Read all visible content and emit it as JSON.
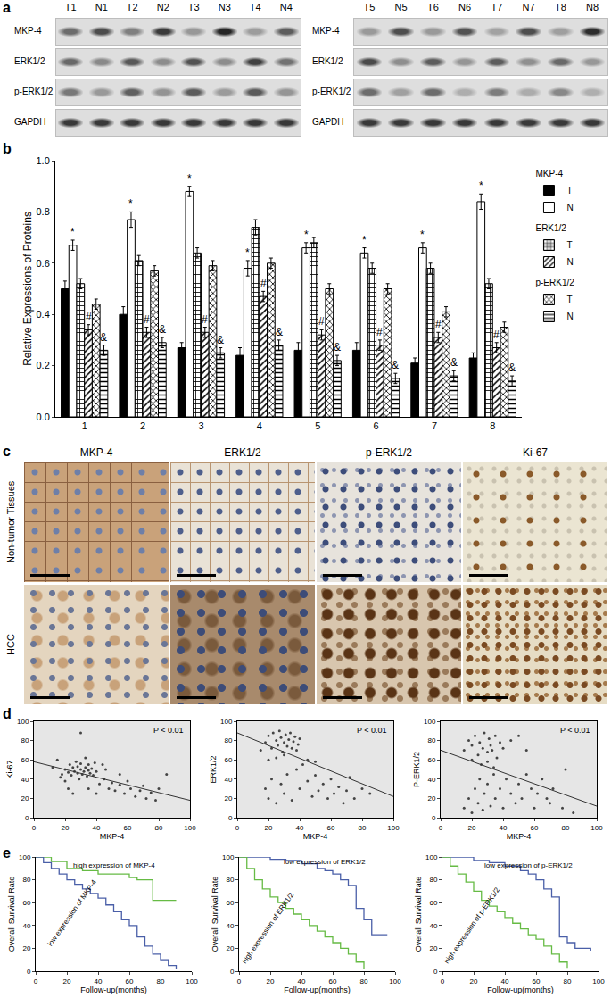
{
  "panel_labels": [
    "a",
    "b",
    "c",
    "d",
    "e"
  ],
  "blot": {
    "rows": [
      "MKP-4",
      "ERK1/2",
      "p-ERK1/2",
      "GAPDH"
    ],
    "blocks": [
      {
        "lanes": [
          "T1",
          "N1",
          "T2",
          "N2",
          "T3",
          "N3",
          "T4",
          "N4"
        ]
      },
      {
        "lanes": [
          "T5",
          "N5",
          "T6",
          "N6",
          "T7",
          "N7",
          "T8",
          "N8"
        ]
      }
    ]
  },
  "ihc": {
    "columns": [
      "MKP-4",
      "ERK1/2",
      "p-ERK1/2",
      "Ki-67"
    ],
    "rows": [
      "Non-tumor Tissues",
      "HCC"
    ]
  },
  "chart_data": [
    {
      "type": "bar",
      "categories": [
        "1",
        "2",
        "3",
        "4",
        "5",
        "6",
        "7",
        "8"
      ],
      "ylabel": "Relative Expressions of Proteins",
      "ylim": [
        0,
        1
      ],
      "yticks": [
        {
          "value": 0,
          "label": "0.0"
        },
        0.2,
        0.4,
        0.6,
        0.8,
        {
          "value": 1,
          "label": "1.0"
        }
      ],
      "grid": false,
      "legend": "right",
      "series": [
        {
          "name": "T",
          "group": "MKP-4",
          "color": "#000000",
          "marker": "solid",
          "values": [
            0.5,
            0.4,
            0.27,
            0.24,
            0.26,
            0.26,
            0.21,
            0.23
          ],
          "errors": [
            0.03,
            0.03,
            0.02,
            0.03,
            0.03,
            0.03,
            0.02,
            0.02
          ]
        },
        {
          "name": "N",
          "group": "MKP-4",
          "color": "#ffffff",
          "marker": "solid",
          "values": [
            0.67,
            0.77,
            0.88,
            0.58,
            0.66,
            0.64,
            0.66,
            0.84
          ],
          "errors": [
            0.02,
            0.03,
            0.02,
            0.03,
            0.02,
            0.02,
            0.02,
            0.03
          ]
        },
        {
          "name": "T",
          "group": "ERK1/2",
          "color": "#ffffff",
          "marker": "+",
          "values": [
            0.52,
            0.61,
            0.64,
            0.74,
            0.68,
            0.58,
            0.58,
            0.52
          ],
          "errors": [
            0.02,
            0.02,
            0.02,
            0.03,
            0.02,
            0.02,
            0.02,
            0.02
          ]
        },
        {
          "name": "N",
          "group": "ERK1/2",
          "color": "#ffffff",
          "marker": "/",
          "values": [
            0.34,
            0.33,
            0.33,
            0.47,
            0.32,
            0.28,
            0.31,
            0.27
          ],
          "errors": [
            0.02,
            0.02,
            0.02,
            0.02,
            0.02,
            0.02,
            0.02,
            0.02
          ]
        },
        {
          "name": "T",
          "group": "p-ERK1/2",
          "color": "#ffffff",
          "marker": "x",
          "values": [
            0.44,
            0.57,
            0.59,
            0.6,
            0.5,
            0.5,
            0.41,
            0.35
          ],
          "errors": [
            0.02,
            0.02,
            0.02,
            0.02,
            0.02,
            0.02,
            0.02,
            0.02
          ]
        },
        {
          "name": "N",
          "group": "p-ERK1/2",
          "color": "#ffffff",
          "marker": "-",
          "values": [
            0.26,
            0.29,
            0.25,
            0.28,
            0.22,
            0.15,
            0.16,
            0.14
          ],
          "errors": [
            0.02,
            0.02,
            0.02,
            0.02,
            0.02,
            0.02,
            0.02,
            0.02
          ]
        }
      ],
      "annotations": [
        {
          "group": "MKP-4",
          "series": "N",
          "text": "*"
        },
        {
          "group": "ERK1/2",
          "series": "N",
          "text": "#"
        },
        {
          "group": "p-ERK1/2",
          "series": "N",
          "text": "&"
        }
      ]
    },
    {
      "type": "scatter",
      "xlabel": "MKP-4",
      "ylabel": "Ki-67",
      "xlim": [
        0,
        100
      ],
      "xticks": [
        0,
        20,
        40,
        60,
        80,
        100
      ],
      "ylim": [
        0,
        100
      ],
      "yticks": [
        0,
        20,
        40,
        60,
        80,
        100
      ],
      "grid": false,
      "color": "#444444",
      "annotations": [
        "P < 0.01"
      ],
      "x": [
        18,
        20,
        22,
        23,
        24,
        25,
        26,
        27,
        28,
        28,
        29,
        30,
        30,
        31,
        32,
        33,
        34,
        35,
        35,
        36,
        37,
        38,
        39,
        40,
        20,
        22,
        25,
        30,
        15,
        17,
        42,
        45,
        48,
        50,
        52,
        55,
        58,
        60,
        62,
        65,
        68,
        70,
        72,
        75,
        78,
        80,
        85,
        44,
        46,
        55,
        35,
        33,
        12,
        40
      ],
      "values": [
        45,
        50,
        47,
        55,
        44,
        52,
        48,
        58,
        46,
        53,
        40,
        50,
        56,
        45,
        48,
        52,
        43,
        49,
        55,
        46,
        51,
        44,
        57,
        48,
        38,
        30,
        25,
        88,
        60,
        42,
        35,
        40,
        30,
        36,
        28,
        34,
        25,
        38,
        30,
        22,
        28,
        33,
        20,
        26,
        18,
        30,
        45,
        55,
        50,
        45,
        30,
        62,
        52,
        25
      ],
      "fit": {
        "x": [
          0,
          100
        ],
        "values": [
          58,
          18
        ]
      }
    },
    {
      "type": "scatter",
      "xlabel": "MKP-4",
      "ylabel": "ERK1/2",
      "xlim": [
        0,
        100
      ],
      "xticks": [
        0,
        20,
        40,
        60,
        80,
        100
      ],
      "ylim": [
        0,
        100
      ],
      "yticks": [
        0,
        20,
        40,
        60,
        80,
        100
      ],
      "grid": false,
      "color": "#444444",
      "annotations": [
        "P < 0.01"
      ],
      "x": [
        15,
        18,
        20,
        22,
        23,
        25,
        26,
        27,
        28,
        29,
        30,
        31,
        32,
        33,
        34,
        35,
        36,
        37,
        38,
        39,
        40,
        30,
        25,
        20,
        18,
        20,
        22,
        25,
        28,
        30,
        32,
        35,
        38,
        40,
        45,
        48,
        50,
        52,
        55,
        58,
        60,
        62,
        65,
        68,
        70,
        72,
        75,
        80,
        85,
        42,
        45,
        50
      ],
      "values": [
        70,
        78,
        85,
        72,
        88,
        80,
        75,
        90,
        83,
        68,
        78,
        86,
        74,
        81,
        88,
        72,
        79,
        84,
        70,
        76,
        82,
        65,
        62,
        60,
        30,
        20,
        40,
        15,
        35,
        25,
        45,
        18,
        50,
        30,
        38,
        22,
        44,
        28,
        35,
        20,
        40,
        25,
        32,
        15,
        28,
        42,
        20,
        30,
        25,
        55,
        60,
        58
      ],
      "fit": {
        "x": [
          0,
          100
        ],
        "values": [
          88,
          22
        ]
      }
    },
    {
      "type": "scatter",
      "xlabel": "MKP-4",
      "ylabel": "P-ERK1/2",
      "xlim": [
        0,
        100
      ],
      "xticks": [
        0,
        20,
        40,
        60,
        80,
        100
      ],
      "ylim": [
        0,
        100
      ],
      "yticks": [
        0,
        20,
        40,
        60,
        80,
        100
      ],
      "grid": false,
      "color": "#444444",
      "annotations": [
        "P < 0.01"
      ],
      "x": [
        15,
        18,
        20,
        22,
        24,
        25,
        27,
        28,
        30,
        31,
        32,
        33,
        35,
        36,
        38,
        40,
        26,
        30,
        34,
        20,
        45,
        50,
        55,
        15,
        18,
        20,
        22,
        24,
        25,
        27,
        28,
        30,
        32,
        34,
        35,
        38,
        40,
        42,
        45,
        48,
        50,
        52,
        55,
        58,
        60,
        62,
        65,
        68,
        70,
        72,
        78,
        80,
        85
      ],
      "values": [
        70,
        80,
        75,
        85,
        65,
        78,
        72,
        88,
        68,
        82,
        75,
        70,
        85,
        62,
        78,
        72,
        55,
        58,
        52,
        60,
        80,
        85,
        70,
        10,
        20,
        5,
        30,
        15,
        40,
        8,
        25,
        35,
        12,
        45,
        20,
        30,
        10,
        40,
        25,
        15,
        35,
        20,
        45,
        30,
        10,
        25,
        40,
        20,
        15,
        30,
        10,
        50,
        5
      ],
      "fit": {
        "x": [
          0,
          100
        ],
        "values": [
          70,
          12
        ]
      }
    },
    {
      "type": "line",
      "line_style": "step",
      "xlabel": "Follow-up(months)",
      "ylabel": "Overall Survival Rate",
      "xlim": [
        0,
        100
      ],
      "xticks": [
        0,
        20,
        40,
        60,
        80,
        100
      ],
      "ylim": [
        0,
        100
      ],
      "yticks": [
        0,
        20,
        40,
        60,
        80,
        100
      ],
      "grid": false,
      "series": [
        {
          "name": "high expression of MKP-4",
          "color": "#66bb44",
          "x": [
            0,
            10,
            20,
            30,
            40,
            50,
            60,
            65,
            70,
            75,
            80,
            90
          ],
          "values": [
            100,
            96,
            90,
            88,
            85,
            85,
            82,
            80,
            80,
            62,
            62,
            62
          ]
        },
        {
          "name": "low expression of MKP-4",
          "color": "#4a5fa8",
          "x": [
            0,
            5,
            10,
            15,
            20,
            25,
            30,
            35,
            40,
            45,
            50,
            55,
            60,
            65,
            70,
            75,
            80,
            85,
            90
          ],
          "values": [
            100,
            95,
            90,
            85,
            80,
            76,
            72,
            68,
            64,
            58,
            52,
            45,
            40,
            30,
            22,
            15,
            10,
            5,
            2
          ]
        }
      ]
    },
    {
      "type": "line",
      "line_style": "step",
      "xlabel": "Follow-up(months)",
      "ylabel": "Overall Survival Rate",
      "xlim": [
        0,
        100
      ],
      "xticks": [
        0,
        20,
        40,
        60,
        80,
        100
      ],
      "ylim": [
        0,
        100
      ],
      "yticks": [
        0,
        20,
        40,
        60,
        80,
        100
      ],
      "grid": false,
      "series": [
        {
          "name": "low expression of ERK1/2",
          "color": "#4a5fa8",
          "x": [
            0,
            10,
            20,
            30,
            40,
            50,
            55,
            60,
            65,
            70,
            75,
            80,
            85,
            95
          ],
          "values": [
            100,
            100,
            98,
            97,
            94,
            90,
            88,
            85,
            80,
            75,
            55,
            45,
            32,
            32
          ]
        },
        {
          "name": "high expression of ERK1/2",
          "color": "#66bb44",
          "x": [
            0,
            5,
            10,
            15,
            20,
            25,
            30,
            35,
            40,
            45,
            50,
            55,
            60,
            65,
            70,
            75,
            80
          ],
          "values": [
            100,
            90,
            80,
            72,
            65,
            60,
            55,
            50,
            45,
            40,
            35,
            30,
            25,
            20,
            15,
            8,
            2
          ]
        }
      ]
    },
    {
      "type": "line",
      "line_style": "step",
      "xlabel": "Follow-up(months)",
      "ylabel": "Overall Survival Rate",
      "xlim": [
        0,
        100
      ],
      "xticks": [
        0,
        20,
        40,
        60,
        80,
        100
      ],
      "ylim": [
        0,
        100
      ],
      "yticks": [
        0,
        20,
        40,
        60,
        80,
        100
      ],
      "grid": false,
      "series": [
        {
          "name": "low expression of p-ERK1/2",
          "color": "#4a5fa8",
          "x": [
            0,
            10,
            20,
            30,
            40,
            50,
            55,
            60,
            65,
            70,
            75,
            80,
            85,
            95
          ],
          "values": [
            100,
            100,
            97,
            95,
            92,
            88,
            85,
            80,
            72,
            65,
            30,
            25,
            20,
            18
          ]
        },
        {
          "name": "high expression of p-ERK1/2",
          "color": "#66bb44",
          "x": [
            0,
            5,
            10,
            15,
            20,
            25,
            30,
            35,
            40,
            45,
            50,
            55,
            60,
            65,
            70,
            75,
            80
          ],
          "values": [
            100,
            92,
            85,
            78,
            70,
            62,
            57,
            52,
            47,
            42,
            37,
            32,
            28,
            22,
            15,
            8,
            3
          ]
        }
      ]
    }
  ]
}
